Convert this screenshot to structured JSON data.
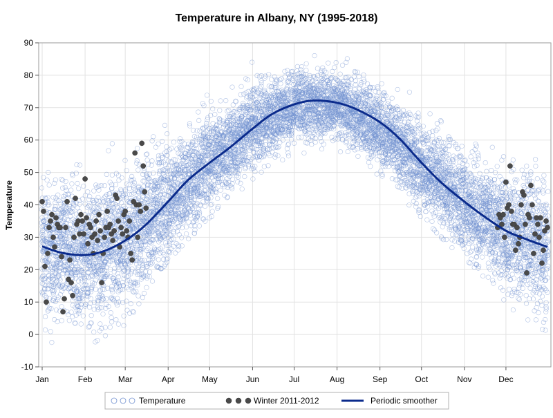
{
  "chart_data": {
    "type": "scatter",
    "title": "Temperature in Albany, NY (1995-2018)",
    "xlabel": "",
    "ylabel": "Temperature",
    "x_ticks": [
      "Jan",
      "Feb",
      "Mar",
      "Apr",
      "May",
      "Jun",
      "Jul",
      "Aug",
      "Sep",
      "Oct",
      "Nov",
      "Dec"
    ],
    "x_range_days": [
      1,
      366
    ],
    "ylim": [
      -10,
      90
    ],
    "y_ticks": [
      -10,
      0,
      10,
      20,
      30,
      40,
      50,
      60,
      70,
      80,
      90
    ],
    "grid": true,
    "legend_position": "bottom",
    "series": [
      {
        "name": "Temperature",
        "kind": "scatter",
        "marker": "open-circle",
        "color": "#6f8fcf",
        "description": "Daily mean temperatures for every day 1995-2018 (approx. 8,700 points); dense seasonal band",
        "envelope": [
          {
            "x": "Jan 1",
            "low": 0,
            "mean": 27,
            "high": 52
          },
          {
            "x": "Feb 1",
            "low": -2,
            "mean": 24.5,
            "high": 50
          },
          {
            "x": "Mar 1",
            "low": 5,
            "mean": 29,
            "high": 60
          },
          {
            "x": "Apr 1",
            "low": 25,
            "mean": 41,
            "high": 68
          },
          {
            "x": "May 1",
            "low": 38,
            "mean": 53,
            "high": 75
          },
          {
            "x": "Jun 1",
            "low": 50,
            "mean": 64,
            "high": 82
          },
          {
            "x": "Jul 1",
            "low": 58,
            "mean": 71,
            "high": 86
          },
          {
            "x": "Aug 1",
            "low": 58,
            "mean": 71,
            "high": 84
          },
          {
            "x": "Sep 1",
            "low": 50,
            "mean": 64,
            "high": 80
          },
          {
            "x": "Oct 1",
            "low": 38,
            "mean": 52,
            "high": 72
          },
          {
            "x": "Nov 1",
            "low": 25,
            "mean": 41,
            "high": 64
          },
          {
            "x": "Dec 1",
            "low": 10,
            "mean": 32,
            "high": 56
          },
          {
            "x": "Dec 31",
            "low": 1,
            "mean": 27,
            "high": 52
          }
        ]
      },
      {
        "name": "Winter 2011-2012",
        "kind": "scatter",
        "marker": "filled-circle",
        "color": "#4a4a4a",
        "points": [
          {
            "x": "Jan 1",
            "y": 41
          },
          {
            "x": "Jan 2",
            "y": 38
          },
          {
            "x": "Jan 3",
            "y": 21
          },
          {
            "x": "Jan 4",
            "y": 10
          },
          {
            "x": "Jan 5",
            "y": 25
          },
          {
            "x": "Jan 6",
            "y": 33
          },
          {
            "x": "Jan 7",
            "y": 35
          },
          {
            "x": "Jan 8",
            "y": 37
          },
          {
            "x": "Jan 9",
            "y": 30
          },
          {
            "x": "Jan 10",
            "y": 27
          },
          {
            "x": "Jan 11",
            "y": 36
          },
          {
            "x": "Jan 12",
            "y": 34
          },
          {
            "x": "Jan 13",
            "y": 33
          },
          {
            "x": "Jan 14",
            "y": 33
          },
          {
            "x": "Jan 15",
            "y": 24
          },
          {
            "x": "Jan 16",
            "y": 7
          },
          {
            "x": "Jan 17",
            "y": 11
          },
          {
            "x": "Jan 18",
            "y": 33
          },
          {
            "x": "Jan 19",
            "y": 41
          },
          {
            "x": "Jan 20",
            "y": 17
          },
          {
            "x": "Jan 21",
            "y": 23
          },
          {
            "x": "Jan 22",
            "y": 16
          },
          {
            "x": "Jan 23",
            "y": 12
          },
          {
            "x": "Jan 24",
            "y": 30
          },
          {
            "x": "Jan 25",
            "y": 42
          },
          {
            "x": "Jan 26",
            "y": 34
          },
          {
            "x": "Jan 27",
            "y": 35
          },
          {
            "x": "Jan 28",
            "y": 31
          },
          {
            "x": "Jan 29",
            "y": 37
          },
          {
            "x": "Jan 30",
            "y": 35
          },
          {
            "x": "Jan 31",
            "y": 31
          },
          {
            "x": "Feb 1",
            "y": 48
          },
          {
            "x": "Feb 2",
            "y": 36
          },
          {
            "x": "Feb 3",
            "y": 28
          },
          {
            "x": "Feb 4",
            "y": 34
          },
          {
            "x": "Feb 5",
            "y": 33
          },
          {
            "x": "Feb 6",
            "y": 30
          },
          {
            "x": "Feb 7",
            "y": 25
          },
          {
            "x": "Feb 8",
            "y": 31
          },
          {
            "x": "Feb 9",
            "y": 35
          },
          {
            "x": "Feb 10",
            "y": 29
          },
          {
            "x": "Feb 11",
            "y": 37
          },
          {
            "x": "Feb 12",
            "y": 32
          },
          {
            "x": "Feb 13",
            "y": 16
          },
          {
            "x": "Feb 14",
            "y": 25
          },
          {
            "x": "Feb 15",
            "y": 30
          },
          {
            "x": "Feb 16",
            "y": 33
          },
          {
            "x": "Feb 17",
            "y": 38
          },
          {
            "x": "Feb 18",
            "y": 33
          },
          {
            "x": "Feb 19",
            "y": 34
          },
          {
            "x": "Feb 20",
            "y": 31
          },
          {
            "x": "Feb 21",
            "y": 29
          },
          {
            "x": "Feb 22",
            "y": 32
          },
          {
            "x": "Feb 23",
            "y": 43
          },
          {
            "x": "Feb 24",
            "y": 42
          },
          {
            "x": "Feb 25",
            "y": 35
          },
          {
            "x": "Feb 26",
            "y": 27
          },
          {
            "x": "Feb 27",
            "y": 33
          },
          {
            "x": "Feb 28",
            "y": 31
          },
          {
            "x": "Feb 29",
            "y": 37
          },
          {
            "x": "Mar 1",
            "y": 38
          },
          {
            "x": "Mar 2",
            "y": 32
          },
          {
            "x": "Mar 3",
            "y": 30
          },
          {
            "x": "Mar 4",
            "y": 35
          },
          {
            "x": "Mar 5",
            "y": 25
          },
          {
            "x": "Mar 6",
            "y": 23
          },
          {
            "x": "Mar 7",
            "y": 41
          },
          {
            "x": "Mar 8",
            "y": 56
          },
          {
            "x": "Mar 9",
            "y": 40
          },
          {
            "x": "Mar 10",
            "y": 30
          },
          {
            "x": "Mar 11",
            "y": 40
          },
          {
            "x": "Mar 12",
            "y": 38
          },
          {
            "x": "Mar 13",
            "y": 59
          },
          {
            "x": "Mar 14",
            "y": 52
          },
          {
            "x": "Mar 15",
            "y": 44
          },
          {
            "x": "Mar 16",
            "y": 39
          },
          {
            "x": "Nov 25",
            "y": 33
          },
          {
            "x": "Nov 26",
            "y": 37
          },
          {
            "x": "Nov 27",
            "y": 36
          },
          {
            "x": "Nov 28",
            "y": 34
          },
          {
            "x": "Nov 29",
            "y": 37
          },
          {
            "x": "Nov 30",
            "y": 30
          },
          {
            "x": "Dec 1",
            "y": 47
          },
          {
            "x": "Dec 2",
            "y": 39
          },
          {
            "x": "Dec 3",
            "y": 40
          },
          {
            "x": "Dec 4",
            "y": 52
          },
          {
            "x": "Dec 5",
            "y": 38
          },
          {
            "x": "Dec 6",
            "y": 34
          },
          {
            "x": "Dec 7",
            "y": 34
          },
          {
            "x": "Dec 8",
            "y": 26
          },
          {
            "x": "Dec 9",
            "y": 33
          },
          {
            "x": "Dec 10",
            "y": 28
          },
          {
            "x": "Dec 11",
            "y": 30
          },
          {
            "x": "Dec 12",
            "y": 40
          },
          {
            "x": "Dec 13",
            "y": 44
          },
          {
            "x": "Dec 14",
            "y": 43
          },
          {
            "x": "Dec 15",
            "y": 34
          },
          {
            "x": "Dec 16",
            "y": 19
          },
          {
            "x": "Dec 17",
            "y": 37
          },
          {
            "x": "Dec 18",
            "y": 36
          },
          {
            "x": "Dec 19",
            "y": 46
          },
          {
            "x": "Dec 20",
            "y": 40
          },
          {
            "x": "Dec 21",
            "y": 25
          },
          {
            "x": "Dec 22",
            "y": 31
          },
          {
            "x": "Dec 23",
            "y": 36
          },
          {
            "x": "Dec 24",
            "y": 34
          },
          {
            "x": "Dec 25",
            "y": 30
          },
          {
            "x": "Dec 26",
            "y": 36
          },
          {
            "x": "Dec 27",
            "y": 22
          },
          {
            "x": "Dec 28",
            "y": 26
          },
          {
            "x": "Dec 29",
            "y": 32
          },
          {
            "x": "Dec 30",
            "y": 35
          },
          {
            "x": "Dec 31",
            "y": 33
          }
        ]
      },
      {
        "name": "Periodic smoother",
        "kind": "line",
        "color": "#0b2b8c",
        "points": [
          {
            "x": "Jan 1",
            "y": 27.2
          },
          {
            "x": "Jan 15",
            "y": 25.2
          },
          {
            "x": "Feb 1",
            "y": 24.5
          },
          {
            "x": "Feb 15",
            "y": 25.8
          },
          {
            "x": "Mar 1",
            "y": 29
          },
          {
            "x": "Mar 15",
            "y": 33.5
          },
          {
            "x": "Apr 1",
            "y": 41
          },
          {
            "x": "Apr 15",
            "y": 47.5
          },
          {
            "x": "May 1",
            "y": 53
          },
          {
            "x": "May 15",
            "y": 57.5
          },
          {
            "x": "Jun 1",
            "y": 63.5
          },
          {
            "x": "Jun 15",
            "y": 68
          },
          {
            "x": "Jul 1",
            "y": 71
          },
          {
            "x": "Jul 15",
            "y": 72.2
          },
          {
            "x": "Aug 1",
            "y": 71.5
          },
          {
            "x": "Aug 15",
            "y": 69.5
          },
          {
            "x": "Sep 1",
            "y": 65.5
          },
          {
            "x": "Sep 15",
            "y": 60.5
          },
          {
            "x": "Oct 1",
            "y": 53
          },
          {
            "x": "Oct 15",
            "y": 47
          },
          {
            "x": "Nov 1",
            "y": 41
          },
          {
            "x": "Nov 15",
            "y": 36.5
          },
          {
            "x": "Dec 1",
            "y": 32
          },
          {
            "x": "Dec 15",
            "y": 29.5
          },
          {
            "x": "Dec 31",
            "y": 27
          }
        ]
      }
    ]
  }
}
